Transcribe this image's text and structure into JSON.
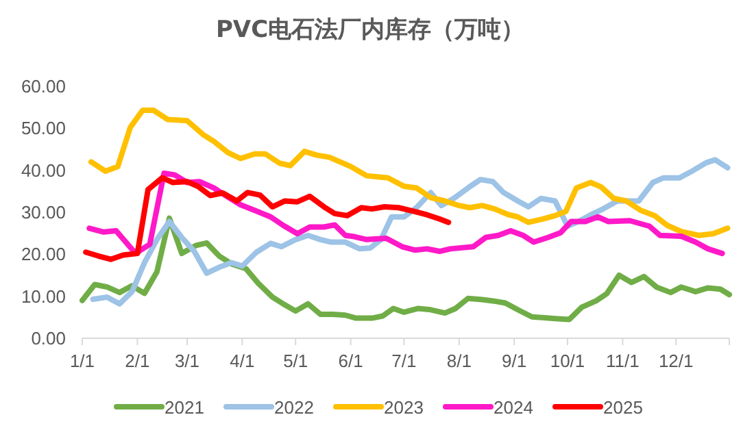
{
  "chart_data": {
    "type": "line",
    "title": "PVC电石法厂内库存（万吨）",
    "xlim": [
      "--01-01",
      "--12-31"
    ],
    "xticks": [
      {
        "value": "--01-01",
        "label": "1/1"
      },
      {
        "value": "--02-01",
        "label": "2/1"
      },
      {
        "value": "--03-01",
        "label": "3/1"
      },
      {
        "value": "--04-01",
        "label": "4/1"
      },
      {
        "value": "--05-01",
        "label": "5/1"
      },
      {
        "value": "--06-01",
        "label": "6/1"
      },
      {
        "value": "--07-01",
        "label": "7/1"
      },
      {
        "value": "--08-01",
        "label": "8/1"
      },
      {
        "value": "--09-01",
        "label": "9/1"
      },
      {
        "value": "--10-01",
        "label": "10/1"
      },
      {
        "value": "--11-01",
        "label": "11/1"
      },
      {
        "value": "--12-01",
        "label": "12/1"
      }
    ],
    "ylim": [
      0,
      60
    ],
    "yticks": [
      {
        "value": 0,
        "label": "0.00"
      },
      {
        "value": 10,
        "label": "10.00"
      },
      {
        "value": 20,
        "label": "20.00"
      },
      {
        "value": 30,
        "label": "30.00"
      },
      {
        "value": 40,
        "label": "40.00"
      },
      {
        "value": 50,
        "label": "50.00"
      },
      {
        "value": 60,
        "label": "60.00"
      }
    ],
    "legend": "bottom",
    "series": [
      {
        "name": "2021",
        "color": "#70ad47",
        "x": [
          "--01-01",
          "--01-08",
          "--01-15",
          "--01-22",
          "--01-29",
          "--02-05",
          "--02-12",
          "--02-19",
          "--02-26",
          "--03-06",
          "--03-12",
          "--03-19",
          "--03-26",
          "--04-03",
          "--04-10",
          "--04-18",
          "--04-24",
          "--05-01",
          "--05-08",
          "--05-15",
          "--05-22",
          "--05-29",
          "--06-04",
          "--06-13",
          "--06-19",
          "--06-25",
          "--07-01",
          "--07-09",
          "--07-16",
          "--07-24",
          "--07-30",
          "--08-06",
          "--08-14",
          "--08-20",
          "--08-27",
          "--09-03",
          "--09-11",
          "--09-18",
          "--09-24",
          "--10-02",
          "--10-09",
          "--10-17",
          "--10-23",
          "--10-30",
          "--11-06",
          "--11-13",
          "--11-20",
          "--11-28",
          "--12-04",
          "--12-12",
          "--12-19",
          "--12-26",
          "--12-31"
        ],
        "values": [
          9.0,
          12.8,
          12.2,
          10.9,
          12.5,
          10.7,
          15.8,
          28.6,
          20.2,
          22.1,
          22.7,
          19.6,
          17.7,
          16.6,
          13.1,
          9.8,
          8.2,
          6.5,
          8.2,
          5.7,
          5.7,
          5.5,
          4.8,
          4.8,
          5.3,
          7.1,
          6.2,
          7.1,
          6.8,
          6.0,
          7.1,
          9.5,
          9.2,
          8.9,
          8.4,
          6.8,
          5.1,
          4.9,
          4.7,
          4.5,
          7.4,
          8.9,
          10.6,
          15.0,
          13.3,
          14.7,
          12.2,
          10.9,
          12.2,
          11.1,
          12.0,
          11.7,
          10.4
        ]
      },
      {
        "name": "2022",
        "color": "#9dc3e6",
        "x": [
          "--01-07",
          "--01-15",
          "--01-22",
          "--01-29",
          "--02-05",
          "--02-12",
          "--02-19",
          "--02-26",
          "--03-05",
          "--03-12",
          "--03-19",
          "--03-26",
          "--04-01",
          "--04-09",
          "--04-17",
          "--04-23",
          "--05-01",
          "--05-08",
          "--05-15",
          "--05-21",
          "--05-29",
          "--06-06",
          "--06-12",
          "--06-18",
          "--06-24",
          "--07-01",
          "--07-08",
          "--07-16",
          "--07-22",
          "--07-29",
          "--08-06",
          "--08-13",
          "--08-20",
          "--08-26",
          "--09-03",
          "--09-09",
          "--09-16",
          "--09-24",
          "--10-01",
          "--10-08",
          "--10-14",
          "--10-21",
          "--10-29",
          "--11-10",
          "--11-18",
          "--11-24",
          "--12-03",
          "--12-10",
          "--12-18",
          "--12-23",
          "--12-30"
        ],
        "values": [
          9.3,
          9.8,
          8.2,
          11.1,
          18.0,
          23.5,
          27.8,
          24.0,
          20.7,
          15.5,
          16.9,
          18.0,
          17.2,
          20.5,
          22.6,
          21.8,
          23.5,
          24.5,
          23.5,
          22.9,
          22.9,
          21.3,
          21.5,
          23.5,
          28.9,
          28.9,
          31.1,
          34.7,
          31.6,
          33.3,
          35.8,
          37.8,
          37.3,
          34.7,
          32.7,
          31.3,
          33.3,
          32.7,
          26.7,
          28.0,
          29.4,
          30.8,
          32.7,
          32.7,
          37.1,
          38.2,
          38.2,
          39.8,
          41.8,
          42.5,
          40.6
        ]
      },
      {
        "name": "2023",
        "color": "#ffc000",
        "x": [
          "--01-06",
          "--01-14",
          "--01-21",
          "--01-28",
          "--02-04",
          "--02-10",
          "--02-18",
          "--03-01",
          "--03-10",
          "--03-16",
          "--03-24",
          "--03-31",
          "--04-08",
          "--04-14",
          "--04-22",
          "--04-28",
          "--05-06",
          "--05-13",
          "--05-20",
          "--05-26",
          "--06-01",
          "--06-10",
          "--06-22",
          "--07-01",
          "--07-08",
          "--07-16",
          "--07-24",
          "--08-01",
          "--08-07",
          "--08-14",
          "--08-21",
          "--08-29",
          "--09-03",
          "--09-09",
          "--09-17",
          "--09-24",
          "--09-30",
          "--10-06",
          "--10-14",
          "--10-20",
          "--10-27",
          "--11-03",
          "--11-11",
          "--11-19",
          "--11-26",
          "--12-04",
          "--12-14",
          "--12-22",
          "--12-30"
        ],
        "values": [
          42.0,
          39.8,
          40.9,
          50.2,
          54.3,
          54.3,
          52.1,
          51.8,
          48.5,
          46.9,
          44.2,
          42.8,
          43.9,
          43.9,
          41.7,
          41.1,
          44.5,
          43.6,
          43.1,
          42.0,
          40.9,
          38.7,
          38.2,
          36.2,
          35.8,
          33.5,
          32.7,
          31.6,
          31.1,
          31.6,
          30.8,
          29.4,
          28.9,
          27.6,
          28.4,
          29.2,
          30.2,
          35.8,
          37.1,
          36.0,
          33.3,
          32.7,
          30.5,
          29.2,
          26.9,
          25.4,
          24.5,
          24.9,
          26.2
        ]
      },
      {
        "name": "2024",
        "color": "#ff19c8",
        "x": [
          "--01-05",
          "--01-13",
          "--01-20",
          "--01-31",
          "--02-08",
          "--02-16",
          "--02-22",
          "--03-01",
          "--03-08",
          "--03-16",
          "--03-24",
          "--03-31",
          "--04-09",
          "--04-17",
          "--04-24",
          "--05-02",
          "--05-09",
          "--05-17",
          "--05-23",
          "--05-29",
          "--06-03",
          "--06-10",
          "--06-21",
          "--06-30",
          "--07-07",
          "--07-14",
          "--07-21",
          "--07-27",
          "--08-09",
          "--08-16",
          "--08-23",
          "--08-30",
          "--09-06",
          "--09-12",
          "--09-20",
          "--09-27",
          "--10-03",
          "--10-11",
          "--10-18",
          "--10-24",
          "--11-05",
          "--11-16",
          "--11-22",
          "--12-04",
          "--12-12",
          "--12-19",
          "--12-27"
        ],
        "values": [
          26.2,
          25.3,
          25.6,
          20.2,
          22.4,
          39.3,
          38.9,
          37.1,
          37.3,
          35.8,
          33.6,
          31.8,
          30.3,
          28.9,
          26.9,
          24.9,
          26.5,
          26.5,
          27.0,
          24.5,
          24.2,
          23.5,
          23.8,
          21.8,
          21.0,
          21.3,
          20.7,
          21.3,
          21.8,
          24.0,
          24.5,
          25.6,
          24.5,
          22.9,
          24.0,
          25.1,
          27.8,
          27.8,
          28.9,
          27.8,
          28.0,
          26.7,
          24.5,
          24.3,
          22.9,
          21.3,
          20.2
        ]
      },
      {
        "name": "2025",
        "color": "#ff0000",
        "x": [
          "--01-03",
          "--01-10",
          "--01-17",
          "--01-24",
          "--02-01",
          "--02-07",
          "--02-15",
          "--02-21",
          "--03-01",
          "--03-07",
          "--03-14",
          "--03-21",
          "--03-29",
          "--04-04",
          "--04-11",
          "--04-18",
          "--04-25",
          "--05-02",
          "--05-09",
          "--05-17",
          "--05-23",
          "--05-30",
          "--06-07",
          "--06-13",
          "--06-20",
          "--06-28",
          "--07-07",
          "--07-14",
          "--07-21",
          "--07-26"
        ],
        "values": [
          20.5,
          19.6,
          18.8,
          19.8,
          20.2,
          35.4,
          38.2,
          37.1,
          37.3,
          36.2,
          34.0,
          34.6,
          32.7,
          34.7,
          34.1,
          31.3,
          32.7,
          32.5,
          33.8,
          31.3,
          29.7,
          29.2,
          31.1,
          30.8,
          31.3,
          31.1,
          30.2,
          29.4,
          28.4,
          27.6
        ]
      }
    ]
  }
}
